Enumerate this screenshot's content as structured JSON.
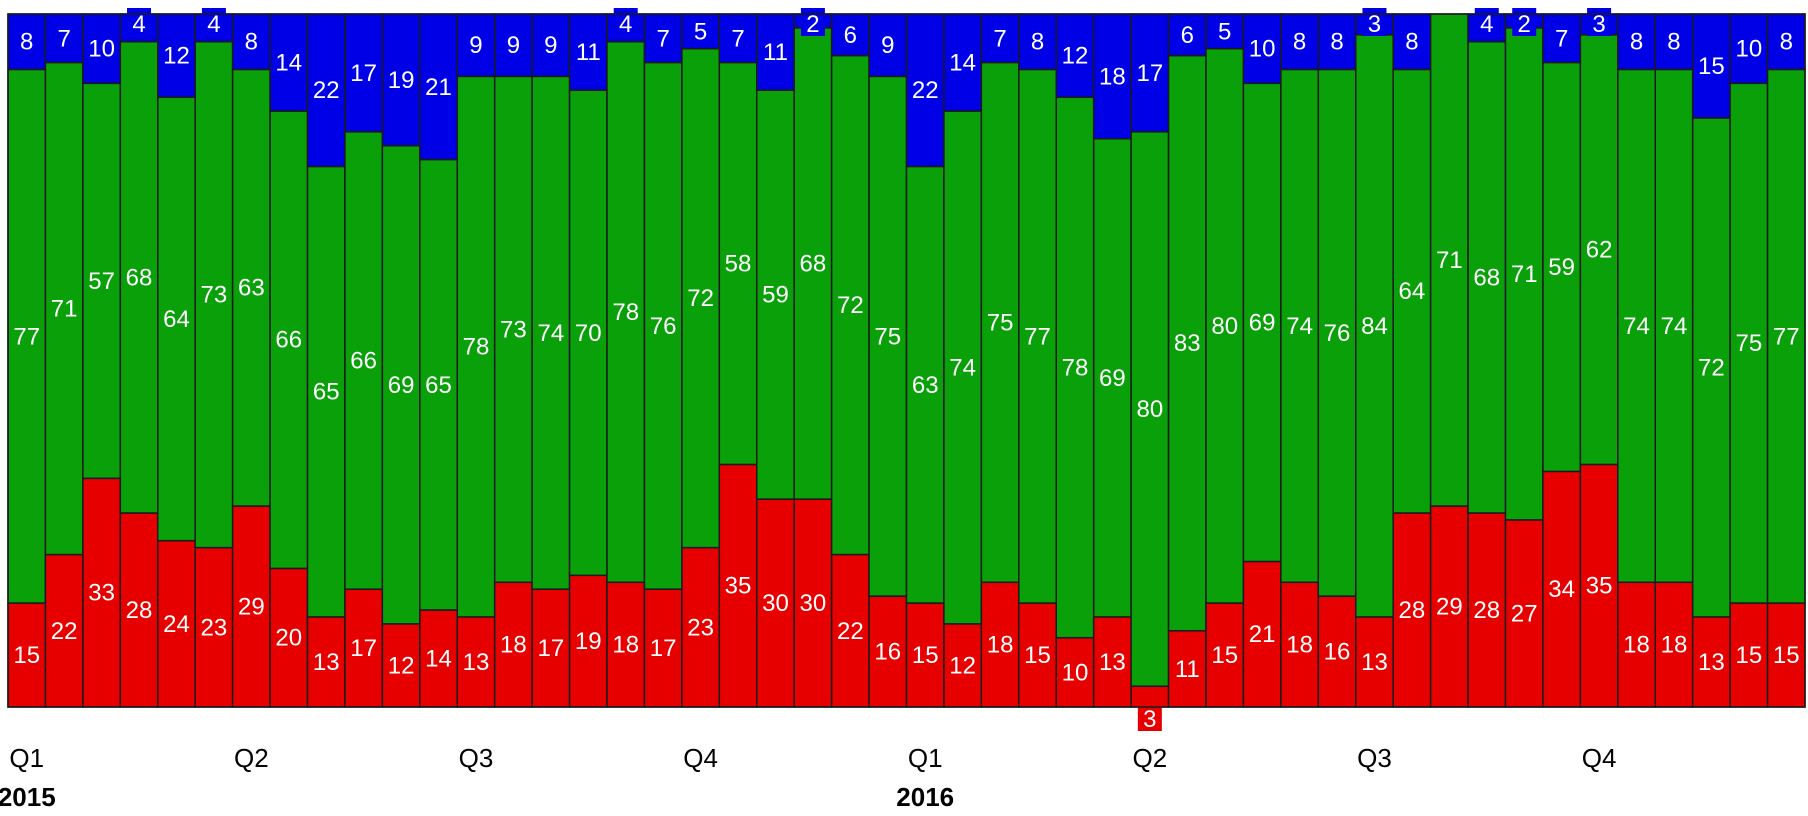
{
  "chart_data": {
    "type": "bar",
    "stacked": true,
    "ylim": [
      0,
      100
    ],
    "grid": false,
    "legend": "none",
    "x": [
      1,
      2,
      3,
      4,
      5,
      6,
      7,
      8,
      9,
      10,
      11,
      12,
      13,
      14,
      15,
      16,
      17,
      18,
      19,
      20,
      21,
      22,
      23,
      24,
      25,
      26,
      27,
      28,
      29,
      30,
      31,
      32,
      33,
      34,
      35,
      36,
      37,
      38,
      39,
      40,
      41,
      42,
      43,
      44,
      45,
      46,
      47,
      48
    ],
    "quarter_ticks": [
      {
        "index": 0,
        "label": "Q1"
      },
      {
        "index": 6,
        "label": "Q2"
      },
      {
        "index": 12,
        "label": "Q3"
      },
      {
        "index": 18,
        "label": "Q4"
      },
      {
        "index": 24,
        "label": "Q1"
      },
      {
        "index": 30,
        "label": "Q2"
      },
      {
        "index": 36,
        "label": "Q3"
      },
      {
        "index": 42,
        "label": "Q4"
      }
    ],
    "year_ticks": [
      {
        "index": 0,
        "label": "2015"
      },
      {
        "index": 24,
        "label": "2016"
      }
    ],
    "series": [
      {
        "color": "#e60000",
        "values": [
          15,
          22,
          33,
          28,
          24,
          23,
          29,
          20,
          13,
          17,
          12,
          14,
          13,
          18,
          17,
          19,
          18,
          17,
          23,
          35,
          30,
          30,
          22,
          16,
          15,
          12,
          18,
          15,
          10,
          13,
          3,
          11,
          15,
          21,
          18,
          16,
          13,
          28,
          29,
          28,
          27,
          34,
          35,
          18,
          18,
          13,
          15,
          15
        ]
      },
      {
        "color": "#0aa00a",
        "values": [
          77,
          71,
          57,
          68,
          64,
          73,
          63,
          66,
          65,
          66,
          69,
          65,
          78,
          73,
          74,
          70,
          78,
          76,
          72,
          58,
          59,
          68,
          72,
          75,
          63,
          74,
          75,
          77,
          78,
          69,
          80,
          83,
          80,
          69,
          74,
          76,
          84,
          64,
          71,
          68,
          71,
          59,
          62,
          74,
          74,
          72,
          75,
          77
        ]
      },
      {
        "color": "#0000e6",
        "values": [
          8,
          7,
          10,
          4,
          12,
          4,
          8,
          14,
          22,
          17,
          19,
          21,
          9,
          9,
          9,
          11,
          4,
          7,
          5,
          7,
          11,
          2,
          6,
          9,
          22,
          14,
          7,
          8,
          12,
          18,
          17,
          6,
          5,
          10,
          8,
          8,
          3,
          8,
          null,
          4,
          2,
          7,
          3,
          8,
          8,
          15,
          10,
          8
        ]
      }
    ]
  }
}
